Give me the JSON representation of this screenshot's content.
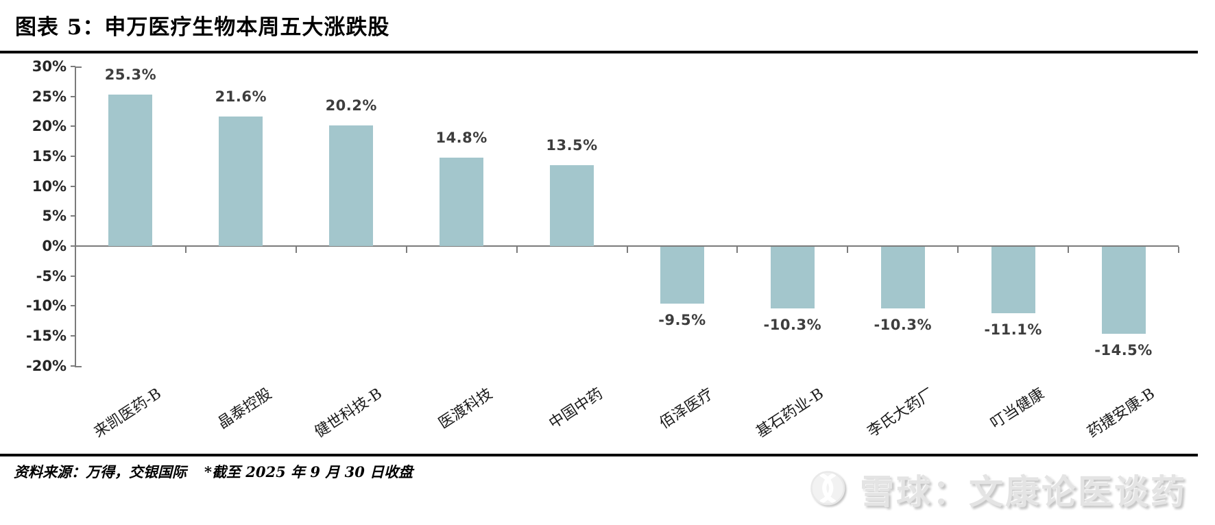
{
  "header": {
    "title": "图表 5：申万医疗生物本周五大涨跌股"
  },
  "footer": {
    "source": "资料来源：万得，交银国际",
    "note": "*截至 2025 年 9 月 30 日收盘"
  },
  "watermark": {
    "logo_icon": "xueqiu-snowball-logo",
    "text": "雪球：文康论医谈药"
  },
  "colors": {
    "bar_fill": "#a3c6cc",
    "axis_line": "#7b7b7b",
    "value_label": "#3d3d3d",
    "watermark_gray": "#e4e4e4",
    "rule_black": "#000000"
  },
  "chart_data": {
    "type": "bar",
    "title": "申万医疗生物本周五大涨跌股",
    "xlabel": "",
    "ylabel": "",
    "categories": [
      "来凯医药-B",
      "晶泰控股",
      "健世科技-B",
      "医渡科技",
      "中国中药",
      "佰泽医疗",
      "基石药业-B",
      "李氏大药厂",
      "叮当健康",
      "药捷安康-B"
    ],
    "values": [
      25.3,
      21.6,
      20.2,
      14.8,
      13.5,
      -9.5,
      -10.3,
      -10.3,
      -11.1,
      -14.5
    ],
    "value_labels": [
      "25.3%",
      "21.6%",
      "20.2%",
      "14.8%",
      "13.5%",
      "-9.5%",
      "-10.3%",
      "-10.3%",
      "-11.1%",
      "-14.5%"
    ],
    "ylim": [
      -20,
      30
    ],
    "ytick_step": 5,
    "ytick_labels": [
      "30%",
      "25%",
      "20%",
      "15%",
      "10%",
      "5%",
      "0%",
      "-5%",
      "-10%",
      "-15%",
      "-20%"
    ],
    "grid": false,
    "legend": "none"
  }
}
